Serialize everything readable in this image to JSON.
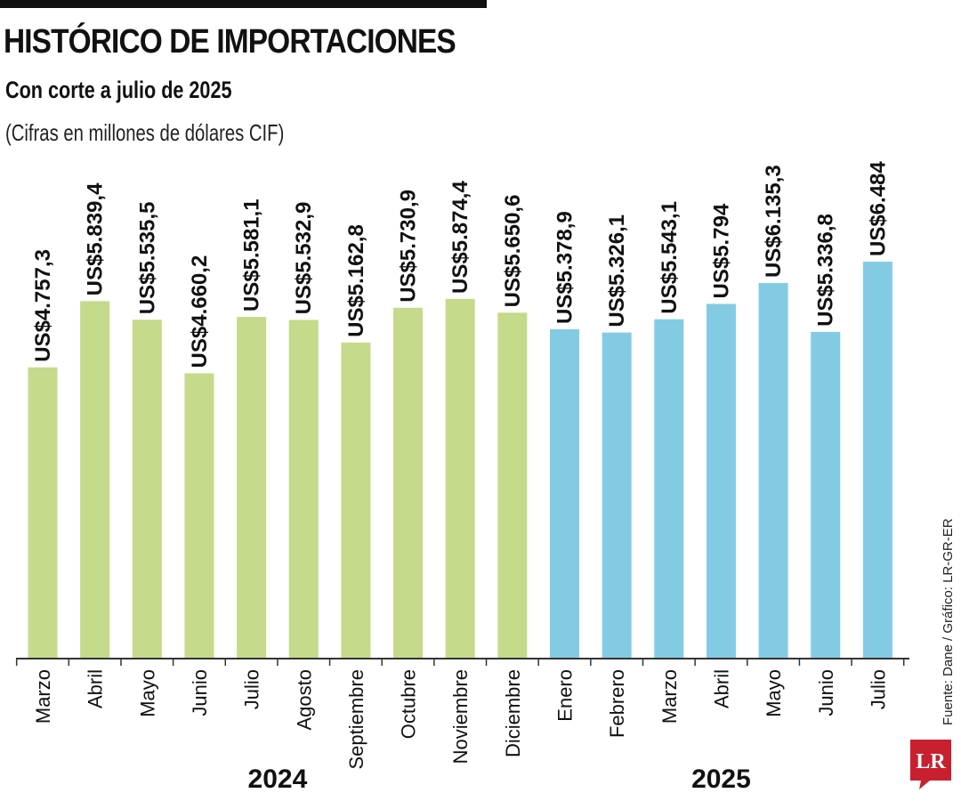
{
  "header": {
    "title": "HISTÓRICO DE IMPORTACIONES",
    "subtitle": "Con corte a julio de 2025",
    "unit_note": "(Cifras en millones de dólares CIF)"
  },
  "source": "Fuente: Dane / Gráfico: LR-GR-ER",
  "logo_text": "LR",
  "colors": {
    "year_2024": "#c5da8a",
    "year_2025": "#83cbe3",
    "axis": "#333333",
    "logo": "#c8202f"
  },
  "chart_data": {
    "type": "bar",
    "title": "HISTÓRICO DE IMPORTACIONES",
    "subtitle": "Con corte a julio de 2025",
    "unit": "(Cifras en millones de dólares CIF)",
    "categories": [
      "Marzo",
      "Abril",
      "Mayo",
      "Junio",
      "Julio",
      "Agosto",
      "Septiembre",
      "Octubre",
      "Noviembre",
      "Diciembre",
      "Enero",
      "Febrero",
      "Marzo",
      "Abril",
      "Mayo",
      "Junio",
      "Julio"
    ],
    "values": [
      4757.3,
      5839.4,
      5535.5,
      4660.2,
      5581.1,
      5532.9,
      5162.8,
      5730.9,
      5874.4,
      5650.6,
      5378.9,
      5326.1,
      5543.1,
      5794,
      6135.3,
      5336.8,
      6484
    ],
    "value_labels": [
      "US$4.757,3",
      "US$5.839,4",
      "US$5.535,5",
      "US$4.660,2",
      "US$5.581,1",
      "US$5.532,9",
      "US$5.162,8",
      "US$5.730,9",
      "US$5.874,4",
      "US$5.650,6",
      "US$5.378,9",
      "US$5.326,1",
      "US$5.543,1",
      "US$5.794",
      "US$6.135,3",
      "US$5.336,8",
      "US$6.484"
    ],
    "groups": [
      {
        "label": "2024",
        "count": 10
      },
      {
        "label": "2025",
        "count": 7
      }
    ],
    "ylim": [
      0,
      6484
    ],
    "grid": false,
    "legend": "none"
  }
}
